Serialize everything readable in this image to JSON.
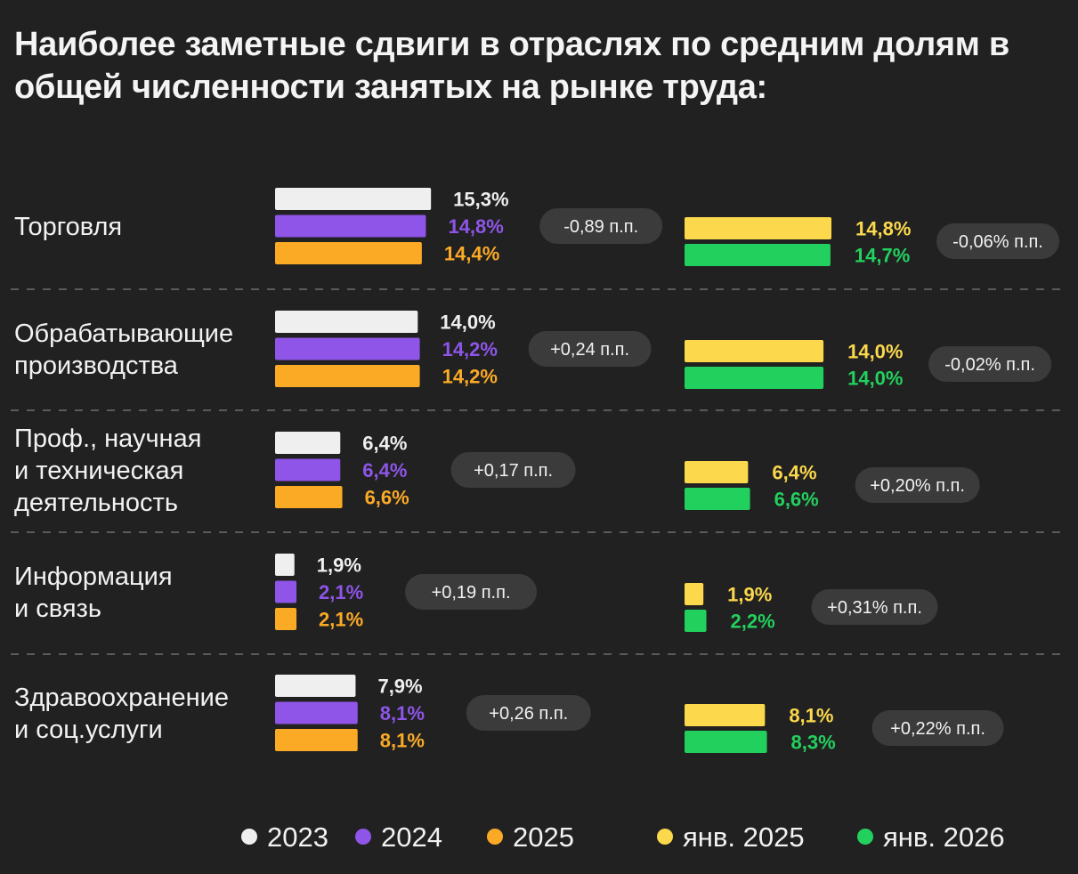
{
  "title": "Наиболее заметные сдвиги в отраслях по средним долям в общей численности занятых на рынке труда:",
  "colors": {
    "2023": "#efefef",
    "2024": "#8e55e8",
    "2025": "#fbaa26",
    "jan2025": "#fcd84c",
    "jan2026": "#22d05e",
    "badge": "#3b3b3b",
    "divider": "#5a5a5a"
  },
  "chart_data": {
    "type": "bar",
    "orientation": "horizontal",
    "categories": [
      [
        "Торговля"
      ],
      [
        "Обрабатывающие",
        "производства"
      ],
      [
        "Проф., научная",
        "и техническая",
        "деятельность"
      ],
      [
        "Информация",
        "и связь"
      ],
      [
        "Здравоохранение",
        "и соц.услуги"
      ]
    ],
    "annual": {
      "series": [
        {
          "name": "2023",
          "color": "#efefef",
          "values": [
            15.3,
            14.0,
            6.4,
            1.9,
            7.9
          ],
          "labels": [
            "15,3%",
            "14,0%",
            "6,4%",
            "1,9%",
            "7,9%"
          ]
        },
        {
          "name": "2024",
          "color": "#8e55e8",
          "values": [
            14.8,
            14.2,
            6.4,
            2.1,
            8.1
          ],
          "labels": [
            "14,8%",
            "14,2%",
            "6,4%",
            "2,1%",
            "8,1%"
          ]
        },
        {
          "name": "2025",
          "color": "#fbaa26",
          "values": [
            14.4,
            14.2,
            6.6,
            2.1,
            8.1
          ],
          "labels": [
            "14,4%",
            "14,2%",
            "6,6%",
            "2,1%",
            "8,1%"
          ]
        }
      ],
      "deltas": [
        "-0,89 п.п.",
        "+0,24 п.п.",
        "+0,17 п.п.",
        "+0,19 п.п.",
        "+0,26 п.п."
      ]
    },
    "january": {
      "series": [
        {
          "name": "янв. 2025",
          "color": "#fcd84c",
          "values": [
            14.8,
            14.0,
            6.4,
            1.9,
            8.1
          ],
          "labels": [
            "14,8%",
            "14,0%",
            "6,4%",
            "1,9%",
            "8,1%"
          ]
        },
        {
          "name": "янв. 2026",
          "color": "#22d05e",
          "values": [
            14.7,
            14.0,
            6.6,
            2.2,
            8.3
          ],
          "labels": [
            "14,7%",
            "14,0%",
            "6,6%",
            "2,2%",
            "8,3%"
          ]
        }
      ],
      "deltas": [
        "-0,06% п.п.",
        "-0,02% п.п.",
        "+0,20% п.п.",
        "+0,31% п.п.",
        "+0,22% п.п."
      ]
    },
    "legend": [
      {
        "name": "2023",
        "color": "#efefef"
      },
      {
        "name": "2024",
        "color": "#8e55e8"
      },
      {
        "name": "2025",
        "color": "#fbaa26"
      },
      {
        "name": "янв. 2025",
        "color": "#fcd84c"
      },
      {
        "name": "янв. 2026",
        "color": "#22d05e"
      }
    ],
    "legend_position": "bottom",
    "grid": false
  }
}
